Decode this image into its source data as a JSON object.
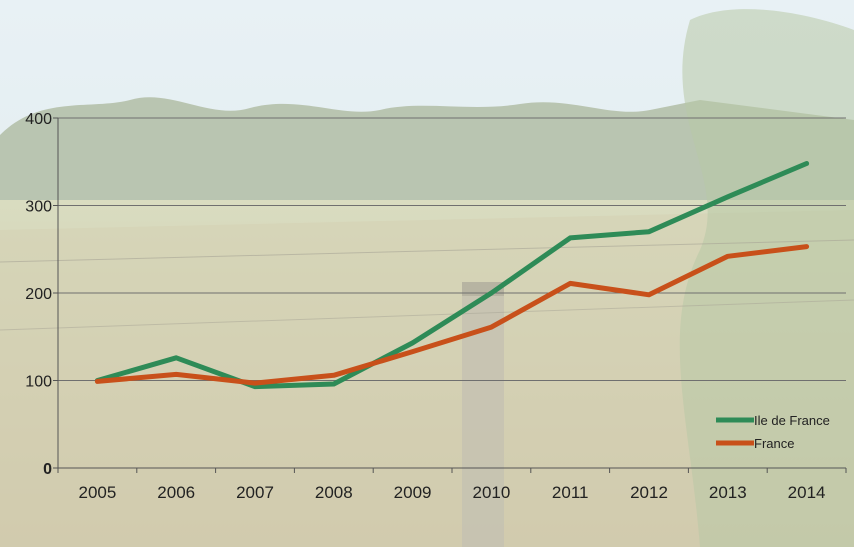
{
  "chart_data": {
    "type": "line",
    "title": "",
    "xlabel": "",
    "ylabel": "",
    "categories": [
      "2005",
      "2006",
      "2007",
      "2008",
      "2009",
      "2010",
      "2011",
      "2012",
      "2013",
      "2014"
    ],
    "series": [
      {
        "name": "Ile de France",
        "color": "#2e8b57",
        "values": [
          100,
          126,
          93,
          96,
          143,
          200,
          263,
          270,
          310,
          348
        ]
      },
      {
        "name": "France",
        "color": "#c8501a",
        "values": [
          99,
          107,
          97,
          106,
          133,
          161,
          211,
          198,
          242,
          253
        ]
      }
    ],
    "ylim": [
      0,
      400
    ],
    "yticks": [
      0,
      100,
      200,
      300,
      400
    ],
    "grid": true,
    "legend_position": "bottom-right"
  },
  "background": {
    "description_icon": "meadow-photo-background",
    "sky_color": "#e4eef2",
    "field_color": "#cfd2ae",
    "tree_color": "#6e8a60"
  }
}
